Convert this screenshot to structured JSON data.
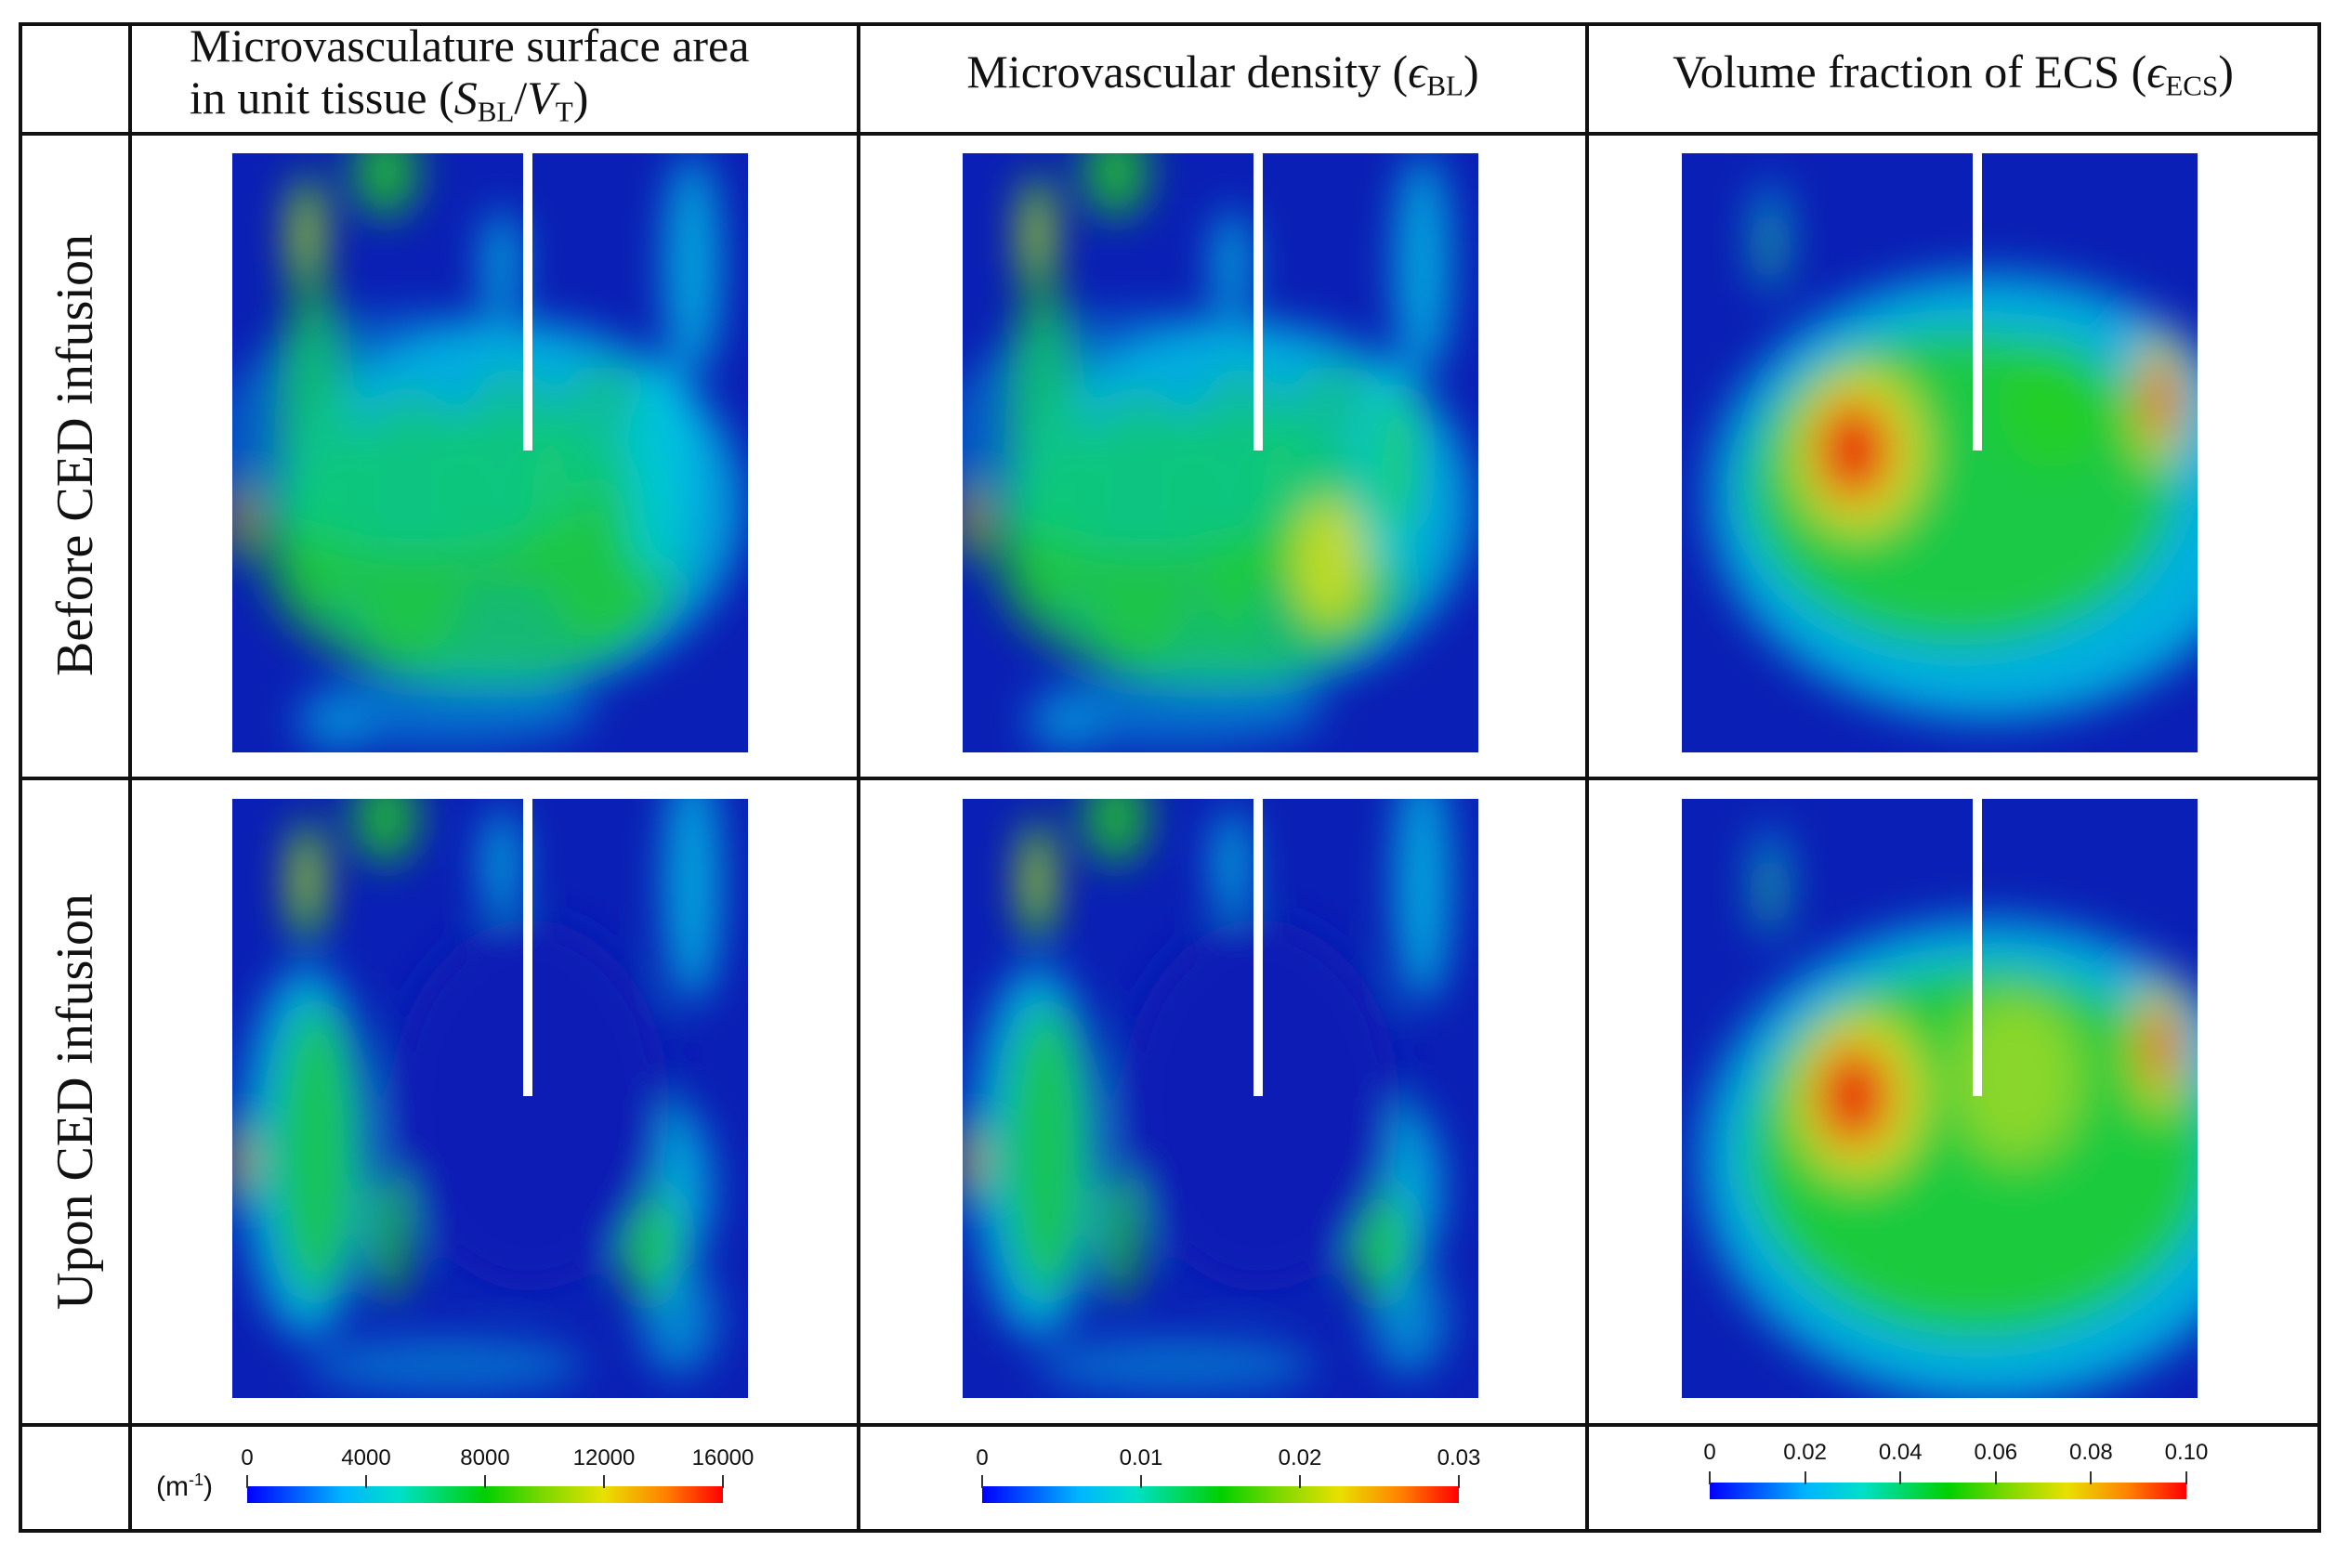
{
  "headers": {
    "col1_line1": "Microvasculature surface area",
    "col1_line2_prefix": "in unit tissue (",
    "col1_S": "S",
    "col1_S_sub": "BL",
    "col1_slash": "/",
    "col1_V": "V",
    "col1_V_sub": "T",
    "col1_suffix": ")",
    "col2_prefix": "Microvascular density (",
    "col2_eps": "ϵ",
    "col2_sub": "BL",
    "col2_suffix": ")",
    "col3_prefix": "Volume fraction of ECS (",
    "col3_eps": "ϵ",
    "col3_sub": "ECS",
    "col3_suffix": ")"
  },
  "rows": {
    "row1_label": "Before CED infusion",
    "row2_label": "Upon CED infusion"
  },
  "colorbars": [
    {
      "unit_base": "(m",
      "unit_sup": "-1",
      "unit_close": ")",
      "min": 0,
      "max": 16000,
      "ticks": [
        {
          "label": "0",
          "value": 0
        },
        {
          "label": "4000",
          "value": 4000
        },
        {
          "label": "8000",
          "value": 8000
        },
        {
          "label": "12000",
          "value": 12000
        },
        {
          "label": "16000",
          "value": 16000
        }
      ]
    },
    {
      "min": 0,
      "max": 0.03,
      "ticks": [
        {
          "label": "0",
          "value": 0
        },
        {
          "label": "0.01",
          "value": 0.01
        },
        {
          "label": "0.02",
          "value": 0.02
        },
        {
          "label": "0.03",
          "value": 0.03
        }
      ]
    },
    {
      "min": 0,
      "max": 0.1,
      "ticks": [
        {
          "label": "0",
          "value": 0
        },
        {
          "label": "0.02",
          "value": 0.02
        },
        {
          "label": "0.04",
          "value": 0.04
        },
        {
          "label": "0.06",
          "value": 0.06
        },
        {
          "label": "0.08",
          "value": 0.08
        },
        {
          "label": "0.10",
          "value": 0.1
        }
      ]
    }
  ],
  "colors": {
    "border": "#111111",
    "field_blue": "#0a1fb5",
    "cyan": "#00c8e8",
    "green": "#20d020",
    "yellow": "#e6e020",
    "red": "#e81010",
    "needle": "#ffffff"
  }
}
